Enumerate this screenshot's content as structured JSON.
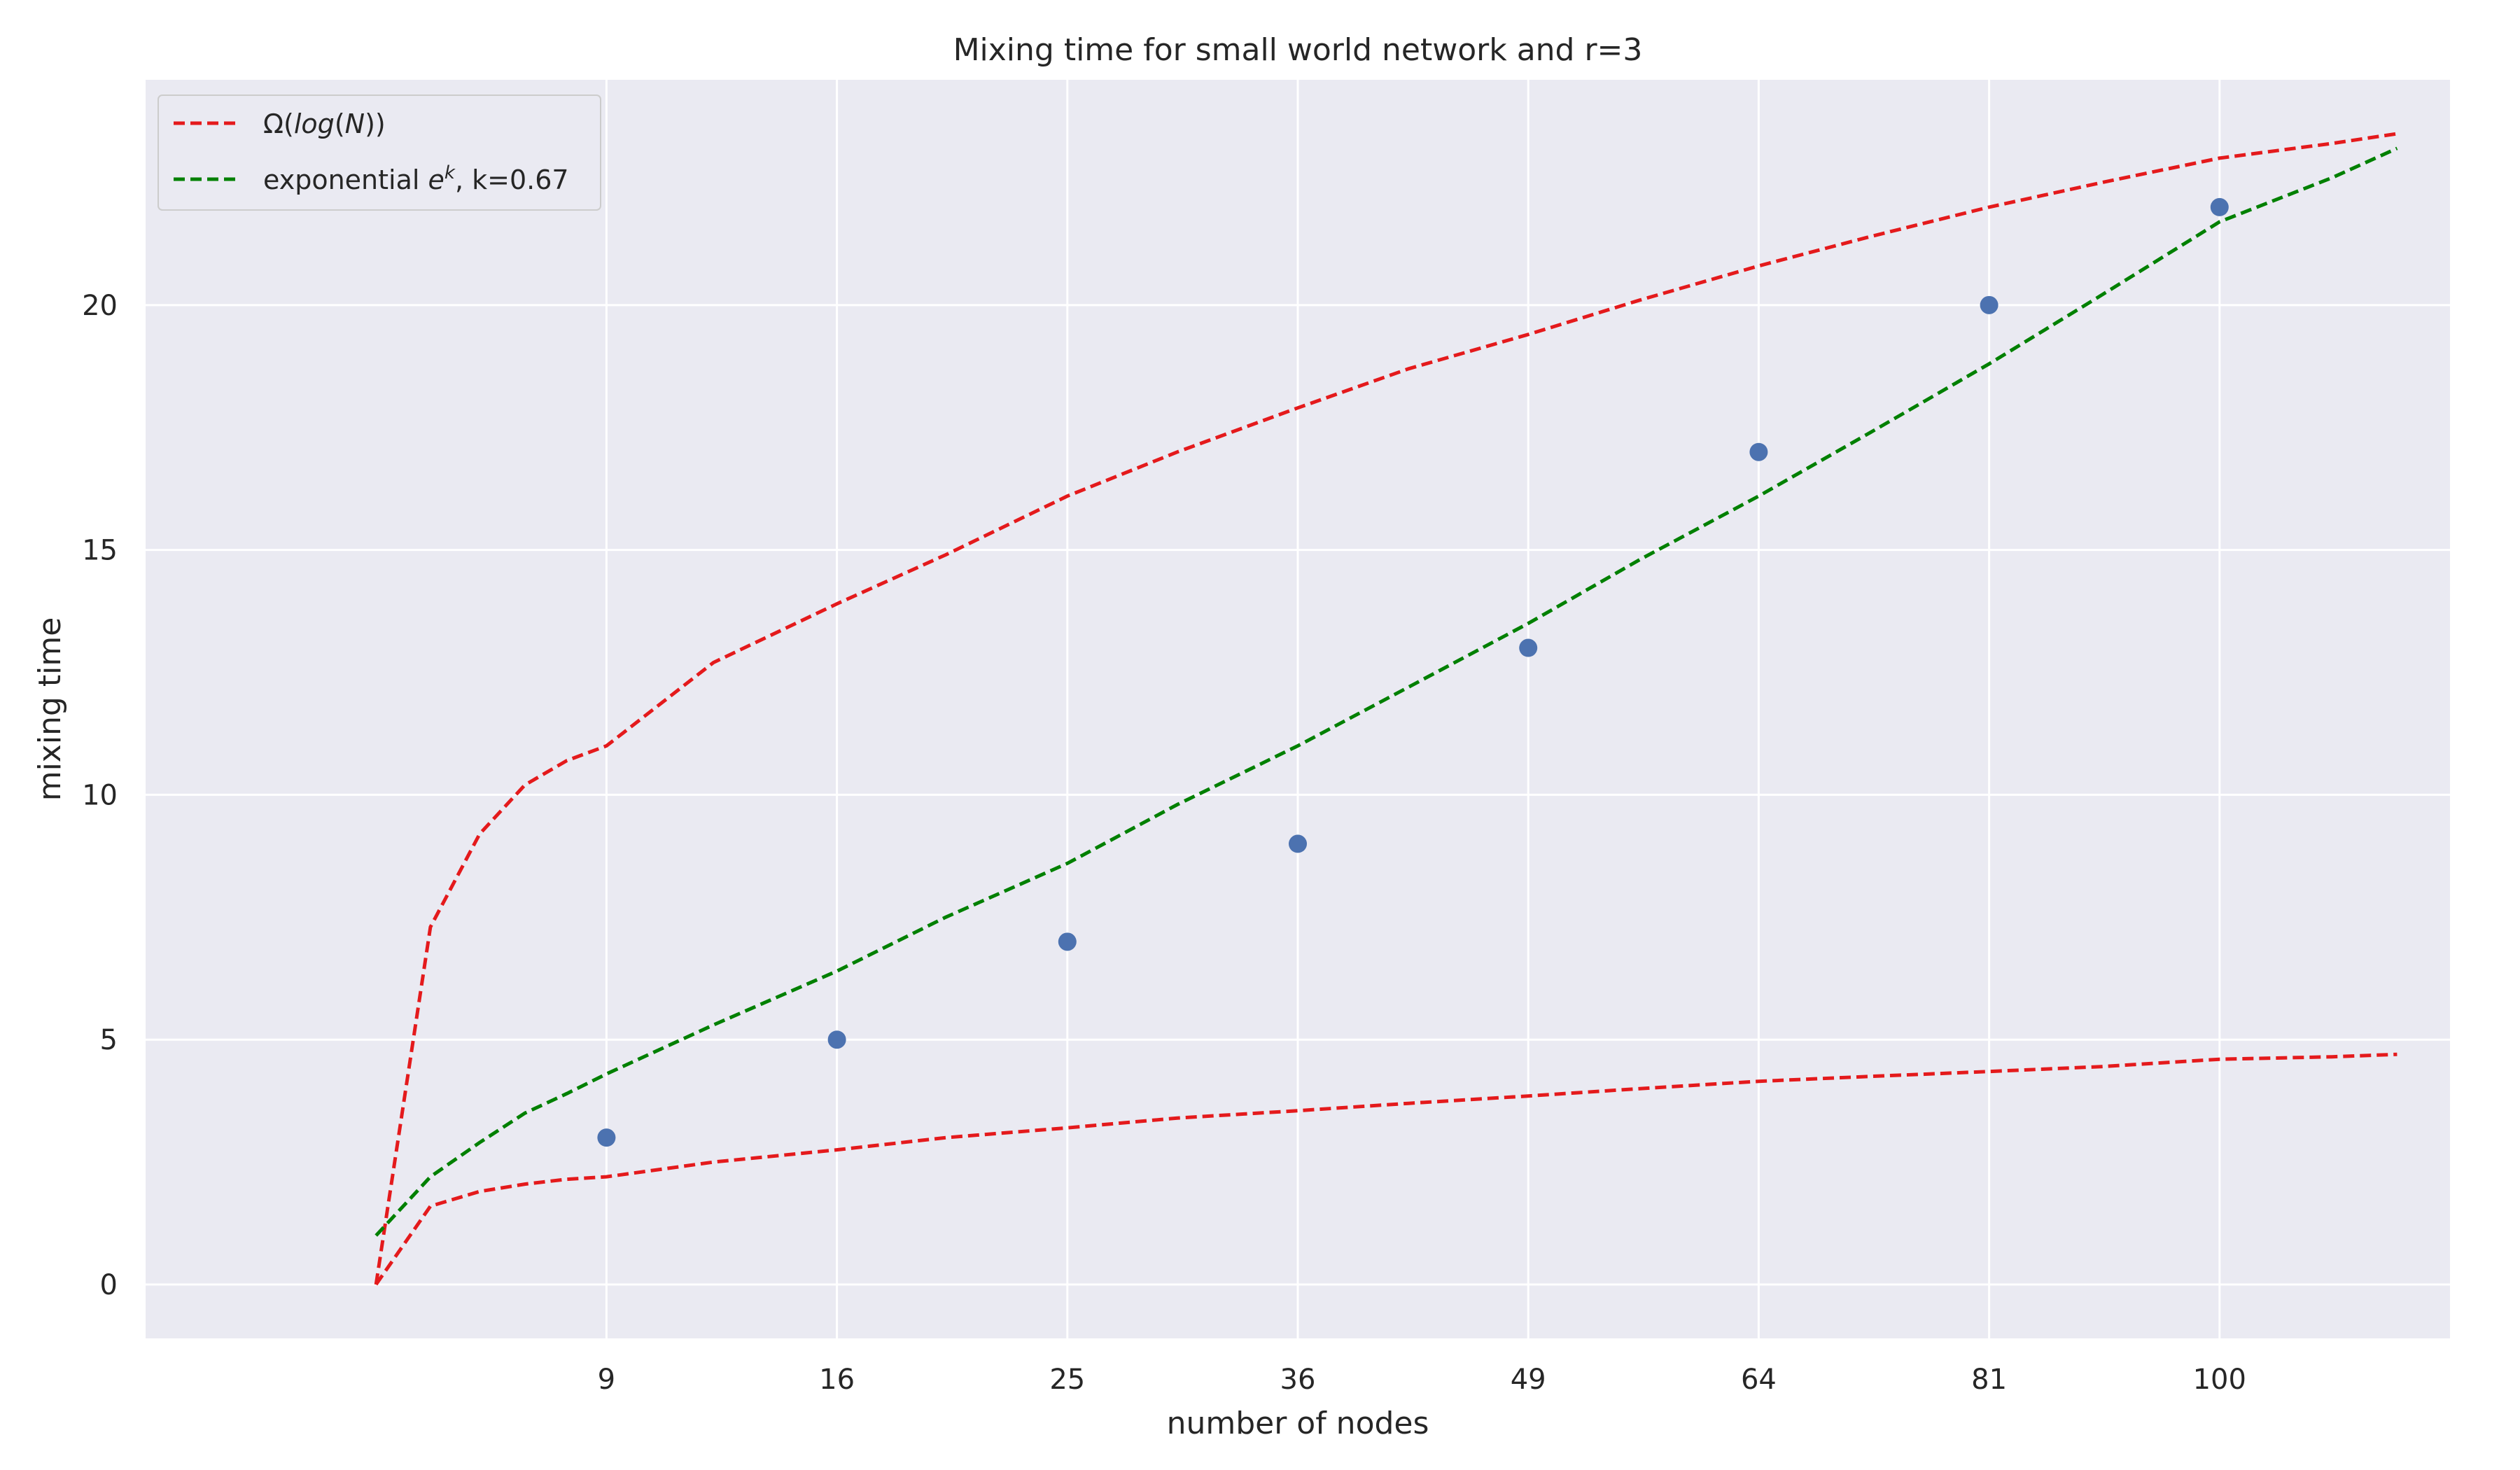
{
  "chart_data": {
    "type": "scatter",
    "title": "Mixing time for small world network and r=3",
    "xlabel": "number of nodes",
    "ylabel": "mixing time",
    "x_axis_scale": "sqrt",
    "xlim": [
      1.0,
      121.0
    ],
    "ylim": [
      -1.1,
      24.6
    ],
    "xticks": [
      9,
      16,
      25,
      36,
      49,
      64,
      81,
      100
    ],
    "yticks": [
      0,
      5,
      10,
      15,
      20
    ],
    "grid": true,
    "legend_position": "top-left",
    "scatter": {
      "color": "#4c72b0",
      "x": [
        9,
        16,
        25,
        36,
        49,
        64,
        81,
        100
      ],
      "y": [
        3,
        5,
        7,
        9,
        13,
        17,
        20,
        22
      ]
    },
    "series": [
      {
        "name": "Ω(log(N))",
        "legend_main": "Ω(",
        "legend_italic": "log",
        "legend_rest": "(",
        "legend_italic2": "N",
        "legend_end": "))",
        "style": "dashed",
        "color": "#e41a1c",
        "x": [
          4,
          5,
          6,
          7,
          8,
          9,
          12,
          16,
          20,
          25,
          30,
          36,
          42,
          49,
          56,
          64,
          72,
          81,
          90,
          100,
          110,
          116
        ],
        "y": [
          0.0,
          7.3,
          9.2,
          10.2,
          10.7,
          11.0,
          12.7,
          13.9,
          14.9,
          16.1,
          17.0,
          17.9,
          18.7,
          19.4,
          20.1,
          20.8,
          21.4,
          22.0,
          22.5,
          23.0,
          23.3,
          23.5
        ]
      },
      {
        "name": "",
        "style": "dashed",
        "color": "#e41a1c",
        "x": [
          4,
          5,
          6,
          7,
          8,
          9,
          12,
          16,
          20,
          25,
          30,
          36,
          42,
          49,
          56,
          64,
          72,
          81,
          90,
          100,
          110,
          116
        ],
        "y": [
          0.0,
          1.6,
          1.9,
          2.05,
          2.15,
          2.2,
          2.5,
          2.75,
          3.0,
          3.2,
          3.4,
          3.55,
          3.7,
          3.85,
          4.0,
          4.15,
          4.25,
          4.35,
          4.45,
          4.6,
          4.65,
          4.7
        ]
      },
      {
        "name": "exponential e^k, k=0.67",
        "legend_main": "exponential ",
        "legend_base": "e",
        "legend_sup": "k",
        "legend_rest": ", k=0.67",
        "style": "dashed",
        "color": "#008000",
        "x": [
          4,
          5,
          6,
          7,
          8,
          9,
          12,
          16,
          20,
          25,
          30,
          36,
          42,
          49,
          56,
          64,
          72,
          81,
          90,
          100,
          110,
          116
        ],
        "y": [
          1.0,
          2.2,
          2.9,
          3.5,
          3.9,
          4.3,
          5.3,
          6.4,
          7.5,
          8.6,
          9.8,
          11.0,
          12.2,
          13.5,
          14.8,
          16.1,
          17.4,
          18.8,
          20.2,
          21.7,
          22.6,
          23.2
        ]
      }
    ]
  }
}
